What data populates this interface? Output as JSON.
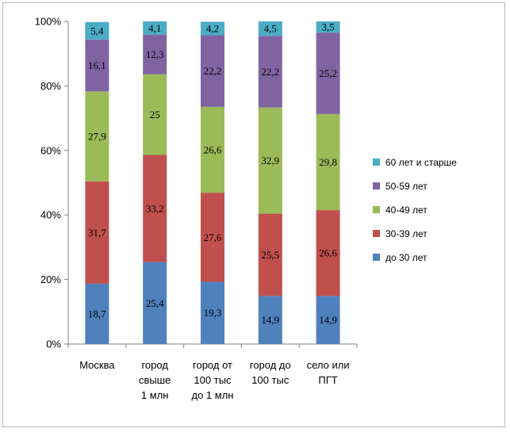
{
  "chart_data": {
    "type": "bar",
    "stacked": true,
    "percent": true,
    "title": "",
    "xlabel": "",
    "ylabel": "",
    "ylim": [
      0,
      100
    ],
    "y_ticks": [
      "0%",
      "20%",
      "40%",
      "60%",
      "80%",
      "100%"
    ],
    "grid": false,
    "legend_position": "right",
    "categories": [
      [
        "Москва"
      ],
      [
        "город",
        "свыше",
        "1 млн"
      ],
      [
        "город от",
        "100 тыс",
        "до 1 млн"
      ],
      [
        "город  до",
        "100 тыс"
      ],
      [
        "село или",
        "ПГТ"
      ]
    ],
    "series": [
      {
        "name": "до 30 лет",
        "color": "#4f81bd",
        "values": [
          18.7,
          25.4,
          19.3,
          14.9,
          14.9
        ],
        "labels": [
          "18,7",
          "25,4",
          "19,3",
          "14,9",
          "14,9"
        ]
      },
      {
        "name": "30-39 лет",
        "color": "#c0504d",
        "values": [
          31.7,
          33.2,
          27.6,
          25.5,
          26.6
        ],
        "labels": [
          "31,7",
          "33,2",
          "27,6",
          "25,5",
          "26,6"
        ]
      },
      {
        "name": "40-49 лет",
        "color": "#9bbb59",
        "values": [
          27.9,
          25,
          26.6,
          32.9,
          29.8
        ],
        "labels": [
          "27,9",
          "25",
          "26,6",
          "32,9",
          "29,8"
        ]
      },
      {
        "name": "50-59 лет",
        "color": "#8064a2",
        "values": [
          16.1,
          12.3,
          22.2,
          22.2,
          25.2
        ],
        "labels": [
          "16,1",
          "12,3",
          "22,2",
          "22,2",
          "25,2"
        ]
      },
      {
        "name": "60 лет и старше",
        "color": "#4bacc6",
        "values": [
          5.4,
          4.1,
          4.2,
          4.5,
          3.5
        ],
        "labels": [
          "5,4",
          "4,1",
          "4,2",
          "4,5",
          "3,5"
        ]
      }
    ]
  }
}
